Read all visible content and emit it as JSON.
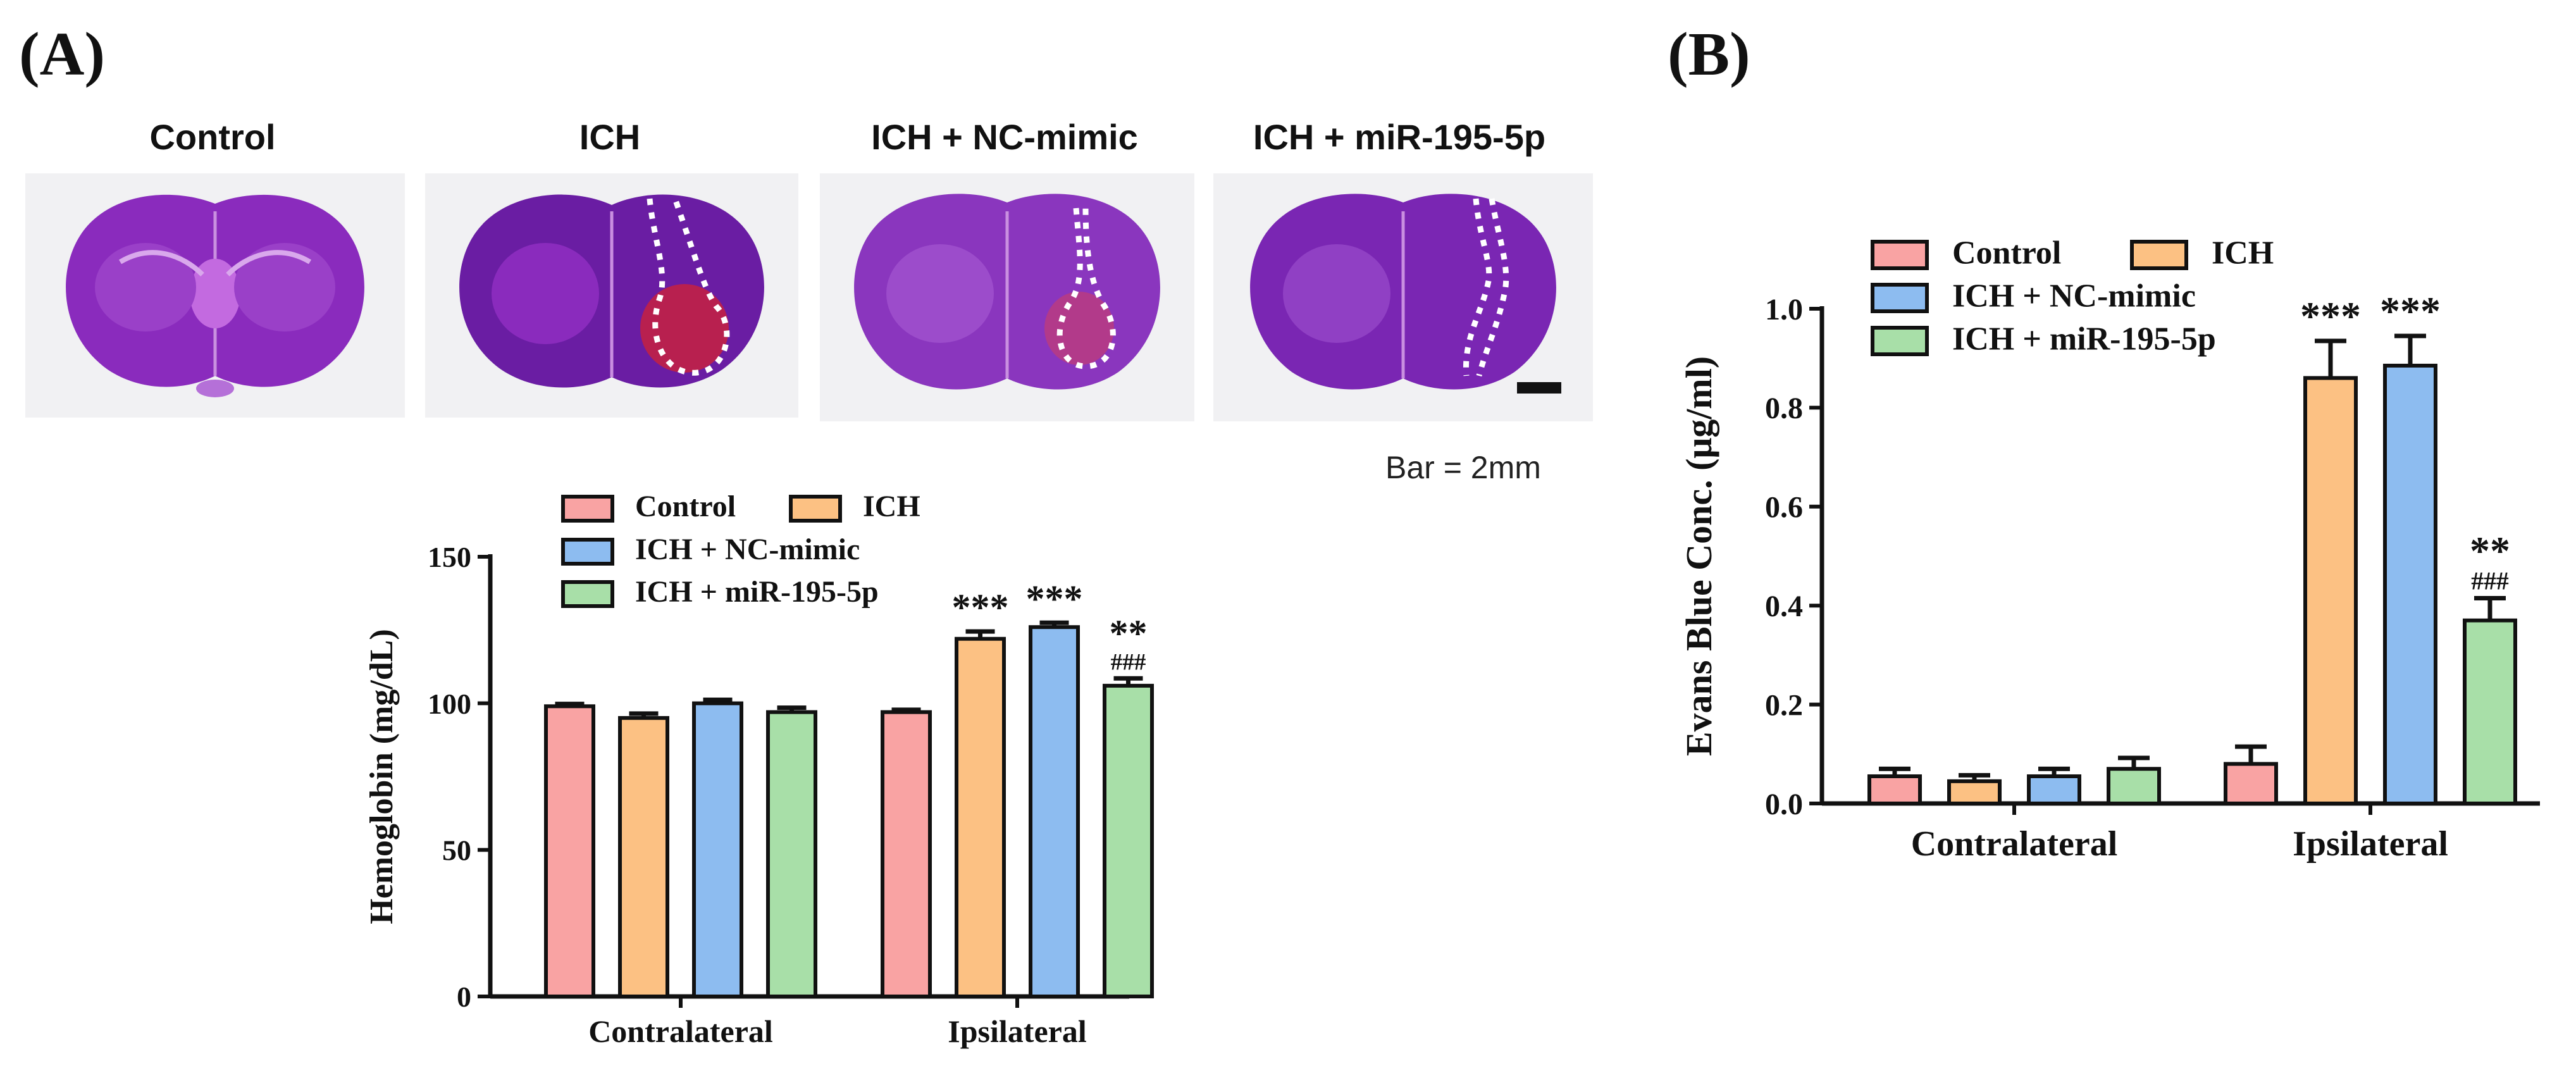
{
  "panel_a": {
    "label": "(A)",
    "images": [
      {
        "title": "Control",
        "lesion": "none"
      },
      {
        "title": "ICH",
        "lesion": "large"
      },
      {
        "title": "ICH + NC-mimic",
        "lesion": "medium"
      },
      {
        "title": "ICH + miR-195-5p",
        "lesion": "small"
      }
    ],
    "scale_bar": "Bar = 2mm"
  },
  "panel_b": {
    "label": "(B)"
  },
  "colors": {
    "Control": "#f9a3a3",
    "ICH": "#fcc183",
    "ICH + NC-mimic": "#8dbcf0",
    "ICH + miR-195-5p": "#a8dfa8",
    "tissue": "#8a2bbd",
    "tissue_dark": "#5e1a93",
    "hematoma": "#c0245e"
  },
  "chart_data": [
    {
      "type": "bar",
      "title": "",
      "xlabel": "",
      "ylabel": "Hemoglobin (mg/dL)",
      "ylim": [
        0,
        150
      ],
      "yticks": [
        0,
        50,
        100,
        150
      ],
      "categories": [
        "Contralateral",
        "Ipsilateral"
      ],
      "series": [
        {
          "name": "Control",
          "values": [
            99,
            97
          ],
          "errors": [
            0.8,
            0.8
          ]
        },
        {
          "name": "ICH",
          "values": [
            95,
            122
          ],
          "errors": [
            1.5,
            2.5
          ]
        },
        {
          "name": "ICH + NC-mimic",
          "values": [
            100,
            126
          ],
          "errors": [
            1.2,
            1.5
          ]
        },
        {
          "name": "ICH + miR-195-5p",
          "values": [
            97,
            106
          ],
          "errors": [
            1.5,
            2.5
          ]
        }
      ],
      "annotations": [
        {
          "category": "Ipsilateral",
          "series": "ICH",
          "text": "***"
        },
        {
          "category": "Ipsilateral",
          "series": "ICH + NC-mimic",
          "text": "***"
        },
        {
          "category": "Ipsilateral",
          "series": "ICH + miR-195-5p",
          "text": "**",
          "text2": "###"
        }
      ],
      "legend": [
        "Control",
        "ICH",
        "ICH + NC-mimic",
        "ICH + miR-195-5p"
      ],
      "legend_position": "top-left"
    },
    {
      "type": "bar",
      "title": "",
      "xlabel": "",
      "ylabel": "Evans Blue Conc. (μg/ml)",
      "ylim": [
        0,
        1.0
      ],
      "yticks": [
        "0.0",
        "0.2",
        "0.4",
        "0.6",
        "0.8",
        "1.0"
      ],
      "categories": [
        "Contralateral",
        "Ipsilateral"
      ],
      "series": [
        {
          "name": "Control",
          "values": [
            0.055,
            0.08
          ],
          "errors": [
            0.015,
            0.035
          ]
        },
        {
          "name": "ICH",
          "values": [
            0.045,
            0.86
          ],
          "errors": [
            0.012,
            0.075
          ]
        },
        {
          "name": "ICH + NC-mimic",
          "values": [
            0.055,
            0.885
          ],
          "errors": [
            0.015,
            0.06
          ]
        },
        {
          "name": "ICH + miR-195-5p",
          "values": [
            0.07,
            0.37
          ],
          "errors": [
            0.022,
            0.045
          ]
        }
      ],
      "annotations": [
        {
          "category": "Ipsilateral",
          "series": "ICH",
          "text": "***"
        },
        {
          "category": "Ipsilateral",
          "series": "ICH + NC-mimic",
          "text": "***"
        },
        {
          "category": "Ipsilateral",
          "series": "ICH + miR-195-5p",
          "text": "**",
          "text2": "###"
        }
      ],
      "legend": [
        "Control",
        "ICH",
        "ICH + NC-mimic",
        "ICH + miR-195-5p"
      ],
      "legend_position": "top-left"
    }
  ]
}
